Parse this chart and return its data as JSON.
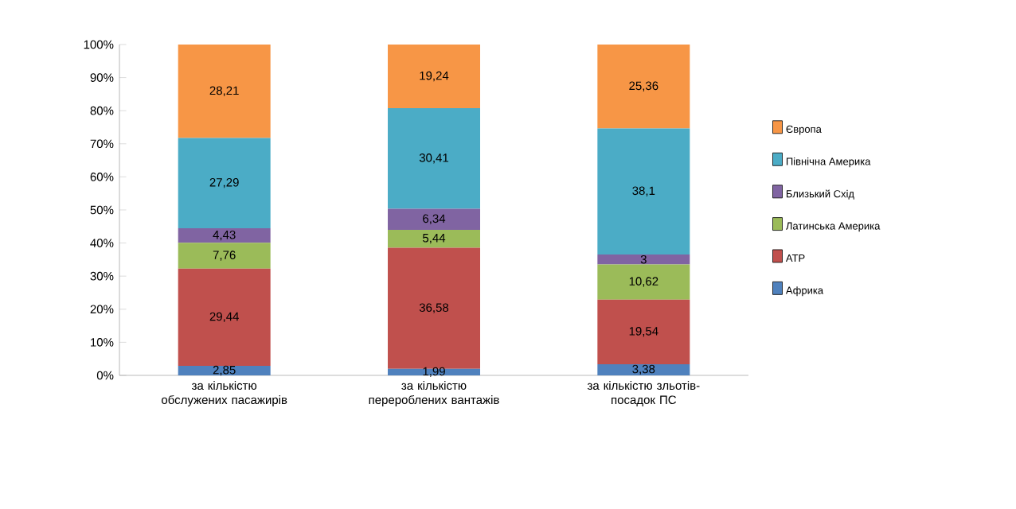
{
  "chart_data": {
    "type": "bar",
    "stacked": true,
    "categories": [
      "за кількістю обслужених пасажирів",
      "за кількістю  перероблених вантажів",
      "за кількістю зльотів-посадок ПС"
    ],
    "series": [
      {
        "name": "Африка",
        "color": "#4f81bd",
        "values": [
          2.85,
          1.99,
          3.38
        ],
        "value_labels": [
          "2,85",
          "1,99",
          "3,38"
        ]
      },
      {
        "name": "АТР",
        "color": "#c0504d",
        "values": [
          29.44,
          36.58,
          19.54
        ],
        "value_labels": [
          "29,44",
          "36,58",
          "19,54"
        ]
      },
      {
        "name": "Латинська Америка",
        "color": "#9bbb59",
        "values": [
          7.76,
          5.44,
          10.62
        ],
        "value_labels": [
          "7,76",
          "5,44",
          "10,62"
        ]
      },
      {
        "name": "Близький Схід",
        "color": "#8064a2",
        "values": [
          4.43,
          6.34,
          3
        ],
        "value_labels": [
          "4,43",
          "6,34",
          "3"
        ]
      },
      {
        "name": "Північна Америка",
        "color": "#4bacc6",
        "values": [
          27.29,
          30.41,
          38.1
        ],
        "value_labels": [
          "27,29",
          "30,41",
          "38,1"
        ]
      },
      {
        "name": "Європа",
        "color": "#f79646",
        "values": [
          28.21,
          19.24,
          25.36
        ],
        "value_labels": [
          "28,21",
          "19,24",
          "25,36"
        ]
      }
    ],
    "ylim": [
      0,
      100
    ],
    "yticks": [
      {
        "value": 0,
        "label": "0%"
      },
      {
        "value": 10,
        "label": "10%"
      },
      {
        "value": 20,
        "label": "20%"
      },
      {
        "value": 30,
        "label": "30%"
      },
      {
        "value": 40,
        "label": "40%"
      },
      {
        "value": 50,
        "label": "50%"
      },
      {
        "value": 60,
        "label": "60%"
      },
      {
        "value": 70,
        "label": "70%"
      },
      {
        "value": 80,
        "label": "80%"
      },
      {
        "value": 90,
        "label": "90%"
      },
      {
        "value": 100,
        "label": "100%"
      }
    ],
    "legend": "right",
    "grid": false
  }
}
